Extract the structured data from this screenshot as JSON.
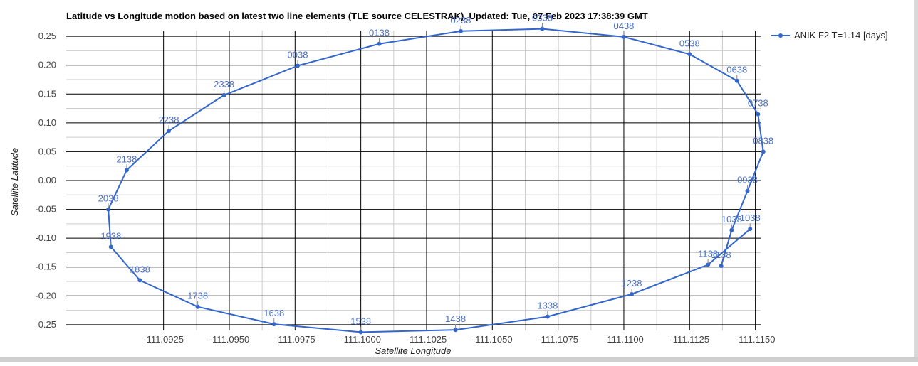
{
  "chart_data": {
    "type": "scatter",
    "title": "Latitude vs Longitude motion based on latest two line elements (TLE source CELESTRAK). Updated: Tue, 07 Feb 2023 17:38:39 GMT",
    "xlabel": "Satellite Longitude",
    "ylabel": "Satellite Latitude",
    "x_reversed": true,
    "xlim": [
      -111.0888,
      -111.1152
    ],
    "ylim": [
      -0.26,
      0.26
    ],
    "x_ticks": [
      -111.0925,
      -111.095,
      -111.0975,
      -111.1,
      -111.1025,
      -111.105,
      -111.1075,
      -111.11,
      -111.1125,
      -111.115
    ],
    "x_tick_labels": [
      "-111.0925",
      "-111.0950",
      "-111.0975",
      "-111.1000",
      "-111.1025",
      "-111.1050",
      "-111.1075",
      "-111.1100",
      "-111.1125",
      "-111.1150"
    ],
    "y_ticks": [
      0.25,
      0.2,
      0.15,
      0.1,
      0.05,
      0.0,
      -0.05,
      -0.1,
      -0.15,
      -0.2,
      -0.25
    ],
    "y_tick_labels": [
      "0.25",
      "0.20",
      "0.15",
      "0.10",
      "0.05",
      "0.00",
      "-0.05",
      "-0.10",
      "-0.15",
      "-0.20",
      "-0.25"
    ],
    "grid": true,
    "legend_position": "right",
    "series": [
      {
        "name": "ANIK F2 T=1.14 [days]",
        "color": "#3366cc",
        "points": [
          {
            "x": -111.1137,
            "y": -0.148,
            "label": "1138"
          },
          {
            "x": -111.1141,
            "y": -0.086,
            "label": "1038"
          },
          {
            "x": -111.1147,
            "y": -0.018,
            "label": "0938"
          },
          {
            "x": -111.1153,
            "y": 0.05,
            "label": "0838"
          },
          {
            "x": -111.1151,
            "y": 0.115,
            "label": "0738"
          },
          {
            "x": -111.1143,
            "y": 0.173,
            "label": "0638"
          },
          {
            "x": -111.1125,
            "y": 0.219,
            "label": "0538"
          },
          {
            "x": -111.11,
            "y": 0.249,
            "label": "0438"
          },
          {
            "x": -111.1069,
            "y": 0.263,
            "label": "0338"
          },
          {
            "x": -111.1038,
            "y": 0.259,
            "label": "0238"
          },
          {
            "x": -111.1007,
            "y": 0.237,
            "label": "0138"
          },
          {
            "x": -111.0976,
            "y": 0.199,
            "label": "0038"
          },
          {
            "x": -111.0948,
            "y": 0.148,
            "label": "2338"
          },
          {
            "x": -111.0927,
            "y": 0.086,
            "label": "2238"
          },
          {
            "x": -111.0911,
            "y": 0.018,
            "label": "2138"
          },
          {
            "x": -111.0904,
            "y": -0.05,
            "label": "2038"
          },
          {
            "x": -111.0905,
            "y": -0.115,
            "label": "1938"
          },
          {
            "x": -111.0916,
            "y": -0.173,
            "label": "1838"
          },
          {
            "x": -111.0938,
            "y": -0.219,
            "label": "1738"
          },
          {
            "x": -111.0967,
            "y": -0.249,
            "label": "1638"
          },
          {
            "x": -111.1,
            "y": -0.263,
            "label": "1538"
          },
          {
            "x": -111.1036,
            "y": -0.259,
            "label": "1438"
          },
          {
            "x": -111.1071,
            "y": -0.236,
            "label": "1338"
          },
          {
            "x": -111.1103,
            "y": -0.197,
            "label": "1238"
          },
          {
            "x": -111.1132,
            "y": -0.146,
            "label": "1138"
          },
          {
            "x": -111.1148,
            "y": -0.084,
            "label": "1038"
          }
        ]
      }
    ]
  }
}
